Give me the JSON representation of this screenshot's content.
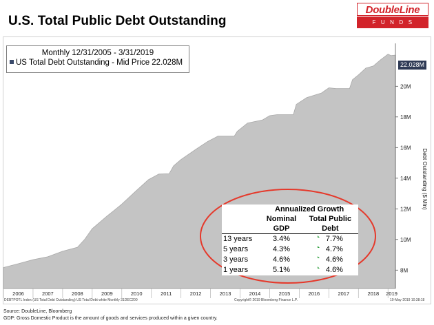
{
  "page": {
    "title": "U.S. Total Public Debt Outstanding",
    "logo_top": "DoubleLine",
    "logo_bottom": "FUNDS"
  },
  "legend": {
    "line1": "Monthly 12/31/2005 - 3/31/2019",
    "line2": "US Total Debt Outstanding - Mid Price 22.028M"
  },
  "last_value_badge": "22.028M",
  "footer": {
    "bloomberg_ticker": "DEBTPOTL Index (US Total Debt Outstanding) US Total Debt white  Monthly 31DEC200",
    "copyright": "Copyright© 2019 Bloomberg Finance L.P.",
    "timestamp": "10-May-2019 10:38:18",
    "source": "Source: DoubleLine, Bloomberg",
    "gdp_note": "GDP: Gross Domestic Product is the amount of goods and services produced within a given country."
  },
  "growth_table": {
    "header": "Annualized Growth",
    "col1": [
      "Nominal",
      "GDP"
    ],
    "col2": [
      "Total Public",
      "Debt"
    ],
    "rows": [
      {
        "label": "13 years",
        "gdp": "3.4%",
        "debt": "7.7%"
      },
      {
        "label": "5 years",
        "gdp": "4.3%",
        "debt": "4.7%"
      },
      {
        "label": "3 years",
        "gdp": "4.6%",
        "debt": "4.6%"
      },
      {
        "label": "1 years",
        "gdp": "5.1%",
        "debt": "4.6%"
      }
    ]
  },
  "colors": {
    "area_fill": "#c4c4c4",
    "ellipse": "#e5392b",
    "badge_bg": "#2e3a55",
    "logo_red": "#d2232a"
  },
  "chart_data": {
    "type": "area",
    "title": "U.S. Total Public Debt Outstanding",
    "ylabel": "Debt Outstanding ($ Mln)",
    "ylim": [
      6.8,
      22.8
    ],
    "yticks": [
      8,
      10,
      12,
      14,
      16,
      18,
      20
    ],
    "ytick_labels": [
      "8M",
      "10M",
      "12M",
      "14M",
      "16M",
      "18M",
      "20M"
    ],
    "x_tick_labels": [
      "2006",
      "2007",
      "2008",
      "2009",
      "2010",
      "2011",
      "2012",
      "2013",
      "2014",
      "2015",
      "2016",
      "2017",
      "2018",
      "2019"
    ],
    "x_start": 2006.0,
    "x_end": 2019.25,
    "series": [
      {
        "name": "US Total Debt Outstanding - Mid Price",
        "unit": "M",
        "points": [
          [
            2006.0,
            8.17
          ],
          [
            2006.5,
            8.42
          ],
          [
            2007.0,
            8.68
          ],
          [
            2007.5,
            8.87
          ],
          [
            2008.0,
            9.23
          ],
          [
            2008.5,
            9.49
          ],
          [
            2008.75,
            10.02
          ],
          [
            2009.0,
            10.7
          ],
          [
            2009.5,
            11.53
          ],
          [
            2009.75,
            11.91
          ],
          [
            2010.0,
            12.31
          ],
          [
            2010.5,
            13.2
          ],
          [
            2010.9,
            13.9
          ],
          [
            2011.25,
            14.27
          ],
          [
            2011.6,
            14.29
          ],
          [
            2011.75,
            14.8
          ],
          [
            2012.0,
            15.22
          ],
          [
            2012.5,
            15.88
          ],
          [
            2012.9,
            16.39
          ],
          [
            2013.25,
            16.74
          ],
          [
            2013.8,
            16.74
          ],
          [
            2013.9,
            17.05
          ],
          [
            2014.25,
            17.6
          ],
          [
            2014.75,
            17.8
          ],
          [
            2015.0,
            18.08
          ],
          [
            2015.25,
            18.15
          ],
          [
            2015.8,
            18.15
          ],
          [
            2015.9,
            18.82
          ],
          [
            2016.25,
            19.26
          ],
          [
            2016.75,
            19.56
          ],
          [
            2017.0,
            19.9
          ],
          [
            2017.25,
            19.85
          ],
          [
            2017.7,
            19.85
          ],
          [
            2017.8,
            20.43
          ],
          [
            2018.0,
            20.74
          ],
          [
            2018.25,
            21.19
          ],
          [
            2018.5,
            21.32
          ],
          [
            2018.75,
            21.73
          ],
          [
            2019.0,
            22.1
          ],
          [
            2019.1,
            22.0
          ],
          [
            2019.25,
            22.03
          ]
        ]
      }
    ],
    "last_value": 22.028,
    "legend_position": "top-left"
  }
}
